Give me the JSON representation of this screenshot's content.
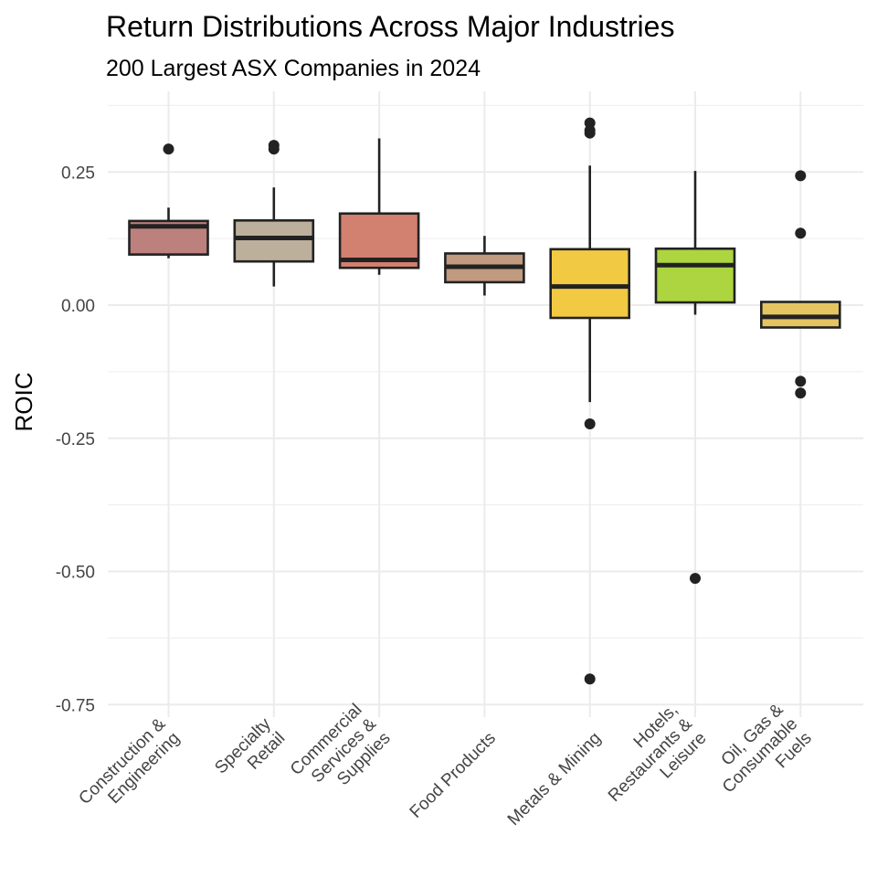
{
  "chart_data": {
    "type": "boxplot",
    "title": "Return Distributions Across Major Industries",
    "subtitle": "200 Largest ASX Companies in 2024",
    "xlabel": "",
    "ylabel": "ROIC",
    "ylim": [
      -0.77,
      0.4
    ],
    "yticks": [
      0.25,
      0.0,
      -0.25,
      -0.5,
      -0.75
    ],
    "ytick_labels": [
      "0.25",
      "0.00",
      "-0.25",
      "-0.50",
      "-0.75"
    ],
    "grid": true,
    "legend": "none",
    "categories": [
      [
        "Construction &",
        "Engineering"
      ],
      [
        "Specialty",
        "Retail"
      ],
      [
        "Commercial",
        "Services &",
        "Supplies"
      ],
      [
        "Food Products"
      ],
      [
        "Metals & Mining"
      ],
      [
        "Hotels,",
        "Restaurants &",
        "Leisure"
      ],
      [
        "Oil, Gas &",
        "Consumable",
        "Fuels"
      ]
    ],
    "boxes": [
      {
        "whisker_low": 0.088,
        "q1": 0.095,
        "median": 0.148,
        "q3": 0.158,
        "whisker_high": 0.183,
        "outliers": [
          0.293
        ],
        "color": "#bc807d"
      },
      {
        "whisker_low": 0.035,
        "q1": 0.082,
        "median": 0.126,
        "q3": 0.159,
        "whisker_high": 0.221,
        "outliers": [
          0.293,
          0.3
        ],
        "color": "#bcaf9b"
      },
      {
        "whisker_low": 0.057,
        "q1": 0.07,
        "median": 0.085,
        "q3": 0.172,
        "whisker_high": 0.313,
        "outliers": [],
        "color": "#d28070"
      },
      {
        "whisker_low": 0.018,
        "q1": 0.043,
        "median": 0.072,
        "q3": 0.097,
        "whisker_high": 0.13,
        "outliers": [],
        "color": "#c09b80"
      },
      {
        "whisker_low": -0.182,
        "q1": -0.024,
        "median": 0.035,
        "q3": 0.105,
        "whisker_high": 0.262,
        "outliers": [
          -0.702,
          -0.223,
          0.323,
          0.328,
          0.342
        ],
        "color": "#f2c943"
      },
      {
        "whisker_low": -0.018,
        "q1": 0.005,
        "median": 0.075,
        "q3": 0.106,
        "whisker_high": 0.252,
        "outliers": [
          -0.513
        ],
        "color": "#acd540"
      },
      {
        "whisker_low": -0.042,
        "q1": -0.042,
        "median": -0.022,
        "q3": 0.006,
        "whisker_high": 0.006,
        "outliers": [
          -0.165,
          -0.143,
          0.135,
          0.243
        ],
        "color": "#e5c462"
      }
    ]
  }
}
